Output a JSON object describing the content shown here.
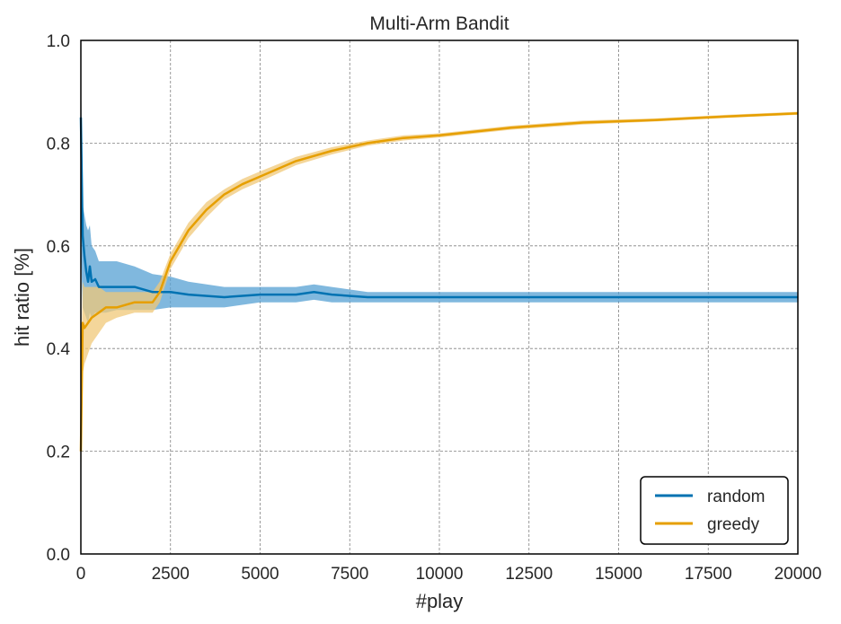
{
  "chart_data": {
    "type": "line",
    "title": "Multi-Arm Bandit",
    "xlabel": "#play",
    "ylabel": "hit ratio [%]",
    "xlim": [
      0,
      20000
    ],
    "ylim": [
      0.0,
      1.0
    ],
    "xticks": [
      0,
      2500,
      5000,
      7500,
      10000,
      12500,
      15000,
      17500,
      20000
    ],
    "xtick_labels": [
      "0",
      "2500",
      "5000",
      "7500",
      "10000",
      "12500",
      "15000",
      "17500",
      "20000"
    ],
    "yticks": [
      0.0,
      0.2,
      0.4,
      0.6,
      0.8,
      1.0
    ],
    "ytick_labels": [
      "0.0",
      "0.2",
      "0.4",
      "0.6",
      "0.8",
      "1.0"
    ],
    "grid": true,
    "legend_position": "lower-right",
    "series": [
      {
        "name": "random",
        "color": "#0072b2",
        "band_color": "#56a0d3",
        "x": [
          0,
          50,
          100,
          150,
          200,
          250,
          300,
          400,
          500,
          700,
          1000,
          1500,
          2000,
          2500,
          3000,
          4000,
          5000,
          6000,
          6500,
          7000,
          8000,
          10000,
          12000,
          14000,
          16000,
          18000,
          20000
        ],
        "y": [
          0.85,
          0.62,
          0.58,
          0.55,
          0.53,
          0.56,
          0.53,
          0.535,
          0.52,
          0.52,
          0.52,
          0.52,
          0.51,
          0.51,
          0.505,
          0.5,
          0.505,
          0.505,
          0.51,
          0.505,
          0.5,
          0.5,
          0.5,
          0.5,
          0.5,
          0.5,
          0.5
        ],
        "lower": [
          0.6,
          0.48,
          0.47,
          0.46,
          0.45,
          0.47,
          0.46,
          0.47,
          0.47,
          0.47,
          0.475,
          0.475,
          0.475,
          0.48,
          0.48,
          0.48,
          0.49,
          0.49,
          0.495,
          0.49,
          0.49,
          0.49,
          0.49,
          0.49,
          0.49,
          0.49,
          0.49
        ],
        "upper": [
          0.95,
          0.68,
          0.66,
          0.64,
          0.63,
          0.64,
          0.6,
          0.59,
          0.57,
          0.57,
          0.57,
          0.56,
          0.545,
          0.54,
          0.53,
          0.52,
          0.52,
          0.52,
          0.525,
          0.52,
          0.51,
          0.51,
          0.51,
          0.51,
          0.51,
          0.51,
          0.51
        ]
      },
      {
        "name": "greedy",
        "color": "#e69f00",
        "band_color": "#f0c878",
        "x": [
          0,
          50,
          100,
          200,
          300,
          500,
          700,
          1000,
          1500,
          2000,
          2200,
          2500,
          3000,
          3500,
          4000,
          4500,
          5000,
          6000,
          7000,
          8000,
          9000,
          10000,
          12000,
          14000,
          16000,
          18000,
          20000
        ],
        "y": [
          0.2,
          0.45,
          0.44,
          0.45,
          0.46,
          0.47,
          0.48,
          0.48,
          0.49,
          0.49,
          0.51,
          0.57,
          0.63,
          0.67,
          0.7,
          0.72,
          0.735,
          0.765,
          0.785,
          0.8,
          0.81,
          0.815,
          0.83,
          0.84,
          0.845,
          0.852,
          0.858
        ],
        "lower": [
          0.1,
          0.35,
          0.37,
          0.39,
          0.41,
          0.43,
          0.45,
          0.46,
          0.47,
          0.47,
          0.49,
          0.555,
          0.615,
          0.655,
          0.69,
          0.71,
          0.725,
          0.757,
          0.778,
          0.795,
          0.805,
          0.811,
          0.826,
          0.836,
          0.842,
          0.849,
          0.855
        ],
        "upper": [
          0.3,
          0.53,
          0.52,
          0.52,
          0.52,
          0.52,
          0.51,
          0.51,
          0.51,
          0.51,
          0.53,
          0.585,
          0.645,
          0.685,
          0.71,
          0.73,
          0.745,
          0.773,
          0.792,
          0.805,
          0.815,
          0.819,
          0.834,
          0.844,
          0.848,
          0.855,
          0.861
        ]
      }
    ]
  }
}
